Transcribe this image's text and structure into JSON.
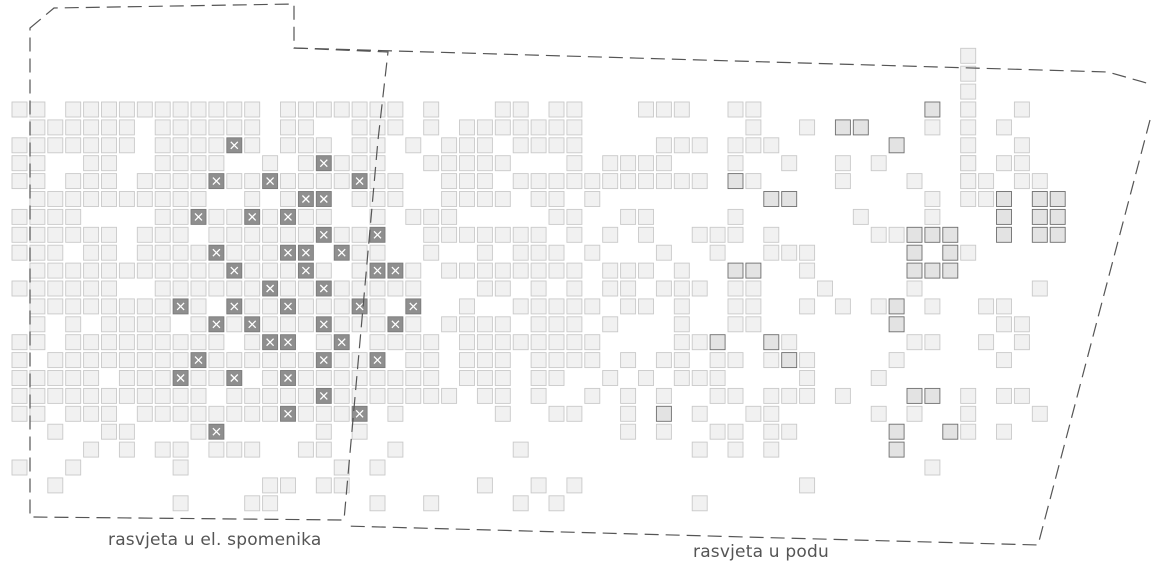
{
  "labels": {
    "monument_lighting": "rasvjeta u el. spomenika",
    "floor_lighting": "rasvjeta u podu"
  },
  "colors": {
    "background": "#ffffff",
    "cell_fill": "#f1f1f1",
    "cell_stroke": "#c9c9c9",
    "cell_dark_fill": "#e3e3e3",
    "cell_dark_stroke": "#6e6e6e",
    "light_fill": "#8f8f8f",
    "light_mark": "#ffffff",
    "boundary_line": "#555555",
    "label_text": "#555555"
  },
  "legend": {
    "light_fixture": "x-mark-icon"
  }
}
